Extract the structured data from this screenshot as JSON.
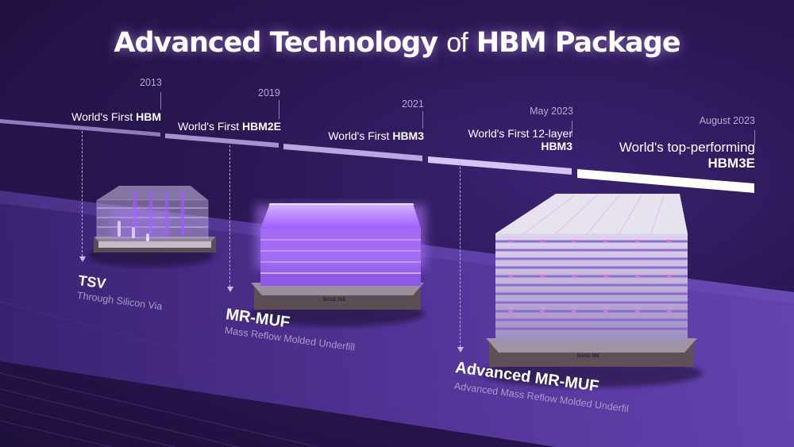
{
  "title": {
    "part1": "Advanced Technology",
    "part2": "of",
    "part3": "HBM Package"
  },
  "milestones": [
    {
      "year": "2013",
      "text": "World's First",
      "bold": "HBM"
    },
    {
      "year": "2019",
      "text": "World's First",
      "bold": "HBM2E"
    },
    {
      "year": "2021",
      "text": "World's First",
      "bold": "HBM3"
    },
    {
      "year": "May 2023",
      "text": "World's First 12-layer",
      "bold": "HBM3"
    },
    {
      "year": "August 2023",
      "text": "World's top-performing",
      "bold": "HBM3E"
    }
  ],
  "technologies": [
    {
      "name": "TSV",
      "desc": "Through Silicon Via"
    },
    {
      "name": "MR-MUF",
      "desc": "Mass Reflow Molded Underfill"
    },
    {
      "name": "Advanced MR-MUF",
      "desc": "Advanced Mass Reflow Molded Underfil"
    }
  ],
  "base_die_label": "BASE DIE",
  "colors": {
    "background": "#241344",
    "accent": "#a86cff",
    "floor": "#5a3c9e"
  }
}
